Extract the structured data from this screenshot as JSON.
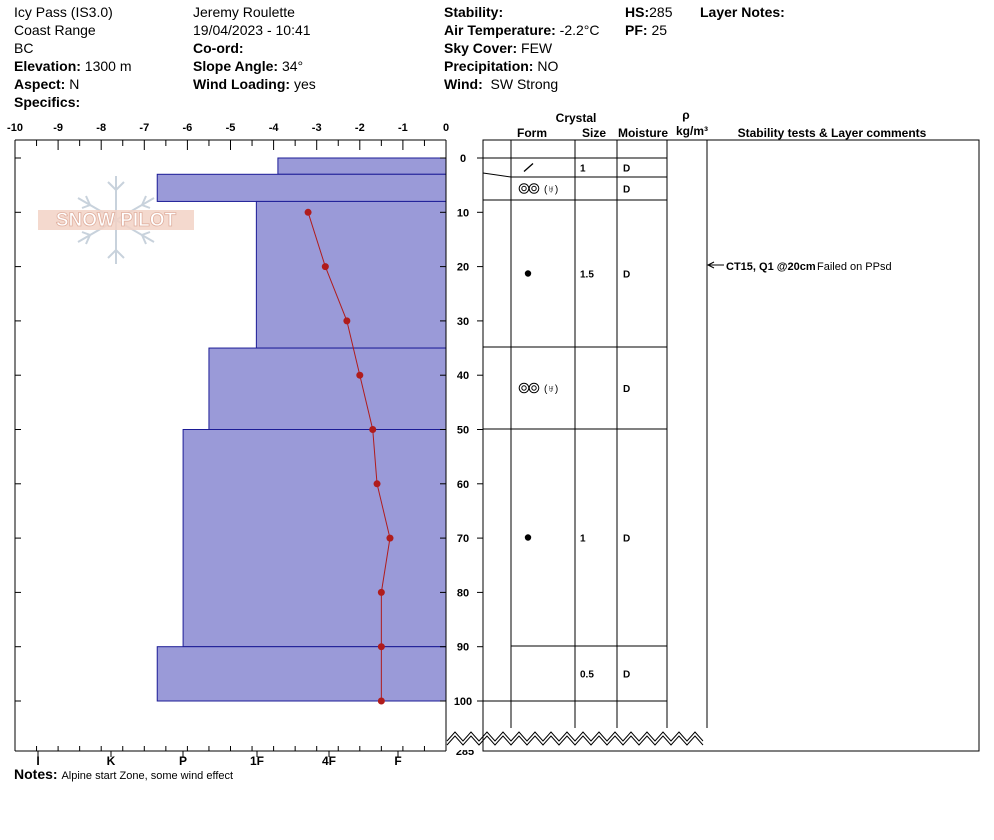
{
  "header": {
    "location": "Icy Pass (IS3.0)",
    "range": "Coast Range",
    "state": "BC",
    "elevation_label": "Elevation:",
    "elevation_value": "1300 m",
    "aspect_label": "Aspect:",
    "aspect_value": "N",
    "specifics_label": "Specifics:",
    "observer": "Jeremy  Roulette",
    "datetime": "19/04/2023 - 10:41",
    "coord_label": "Co-ord:",
    "slope_label": "Slope Angle:",
    "slope_value": "34°",
    "wind_loading_label": "Wind Loading:",
    "wind_loading_value": "yes",
    "stability_label": "Stability:",
    "air_temp_label": "Air Temperature:",
    "air_temp_value": "-2.2°C",
    "sky_label": "Sky Cover:",
    "sky_value": "FEW",
    "precip_label": "Precipitation:",
    "precip_value": "NO",
    "wind_label": "Wind:",
    "wind_value": "SW Strong",
    "hs_label": "HS:",
    "hs_value": "285",
    "pf_label": "PF:",
    "pf_value": "25",
    "layer_notes_label": "Layer Notes:"
  },
  "watermark": {
    "text": "SNOW PILOT"
  },
  "notes": {
    "label": "Notes:",
    "text": "Alpine start Zone, some wind effect"
  },
  "columns": {
    "crystal": "Crystal",
    "form": "Form",
    "size": "Size",
    "moisture": "Moisture",
    "rho": "ρ",
    "density_unit": "kg/m³",
    "stability": "Stability tests & Layer comments"
  },
  "stability_test": {
    "code": "CT15, Q1 @20cm",
    "comment": "Failed on PPsd",
    "depth": 20
  },
  "chart_data": {
    "type": "area",
    "temp_axis": {
      "ticks": [
        "-10",
        "-9",
        "-8",
        "-7",
        "-6",
        "-5",
        "-4",
        "-3",
        "-2",
        "-1",
        "0"
      ],
      "range": [
        -10,
        0
      ]
    },
    "depth_axis": {
      "ticks": [
        "0",
        "10",
        "20",
        "30",
        "40",
        "50",
        "60",
        "70",
        "80",
        "90",
        "100"
      ],
      "range": [
        0,
        100
      ],
      "bottom_label": "285"
    },
    "hardness_axis": {
      "labels": [
        "I",
        "K",
        "P",
        "1F",
        "4F",
        "F"
      ]
    },
    "hardness_profile": [
      {
        "top": 0,
        "bottom": 3,
        "hardness_scale": -3.9
      },
      {
        "top": 3,
        "bottom": 8,
        "hardness_scale": -6.7
      },
      {
        "top": 8,
        "bottom": 35,
        "hardness_scale": -4.4
      },
      {
        "top": 35,
        "bottom": 50,
        "hardness_scale": -5.5
      },
      {
        "top": 50,
        "bottom": 90,
        "hardness_scale": -6.1
      },
      {
        "top": 90,
        "bottom": 100,
        "hardness_scale": -6.7
      }
    ],
    "temperature_profile": {
      "depth": [
        10,
        20,
        30,
        40,
        50,
        60,
        70,
        80,
        90,
        100
      ],
      "temp": [
        -3.2,
        -2.8,
        -2.3,
        -2.0,
        -1.7,
        -1.6,
        -1.3,
        -1.5,
        -1.5,
        -1.5
      ]
    },
    "layers": [
      {
        "top": 0,
        "bottom": 3,
        "form": "",
        "size": "",
        "moisture": ""
      },
      {
        "top": 3,
        "bottom": 8,
        "form": "slash",
        "size": "1",
        "moisture": "D"
      },
      {
        "top": 8,
        "bottom": 35,
        "form": "graupel",
        "size": "",
        "moisture": "D"
      },
      {
        "top": 35,
        "bottom": 50,
        "form": "dot",
        "size": "1.5",
        "moisture": "D"
      },
      {
        "top": 50,
        "bottom": 90,
        "form": "graupel",
        "size": "",
        "moisture": "D"
      },
      {
        "top": 90,
        "bottom": 100,
        "form": "dot",
        "size": "1",
        "moisture": "D"
      },
      {
        "top": 100,
        "bottom": 285,
        "form": "",
        "size": "0.5",
        "moisture": "D"
      }
    ],
    "colors": {
      "fill": "#9a9ad8",
      "edge": "#1c1c96",
      "temp": "#b01c1c"
    }
  }
}
